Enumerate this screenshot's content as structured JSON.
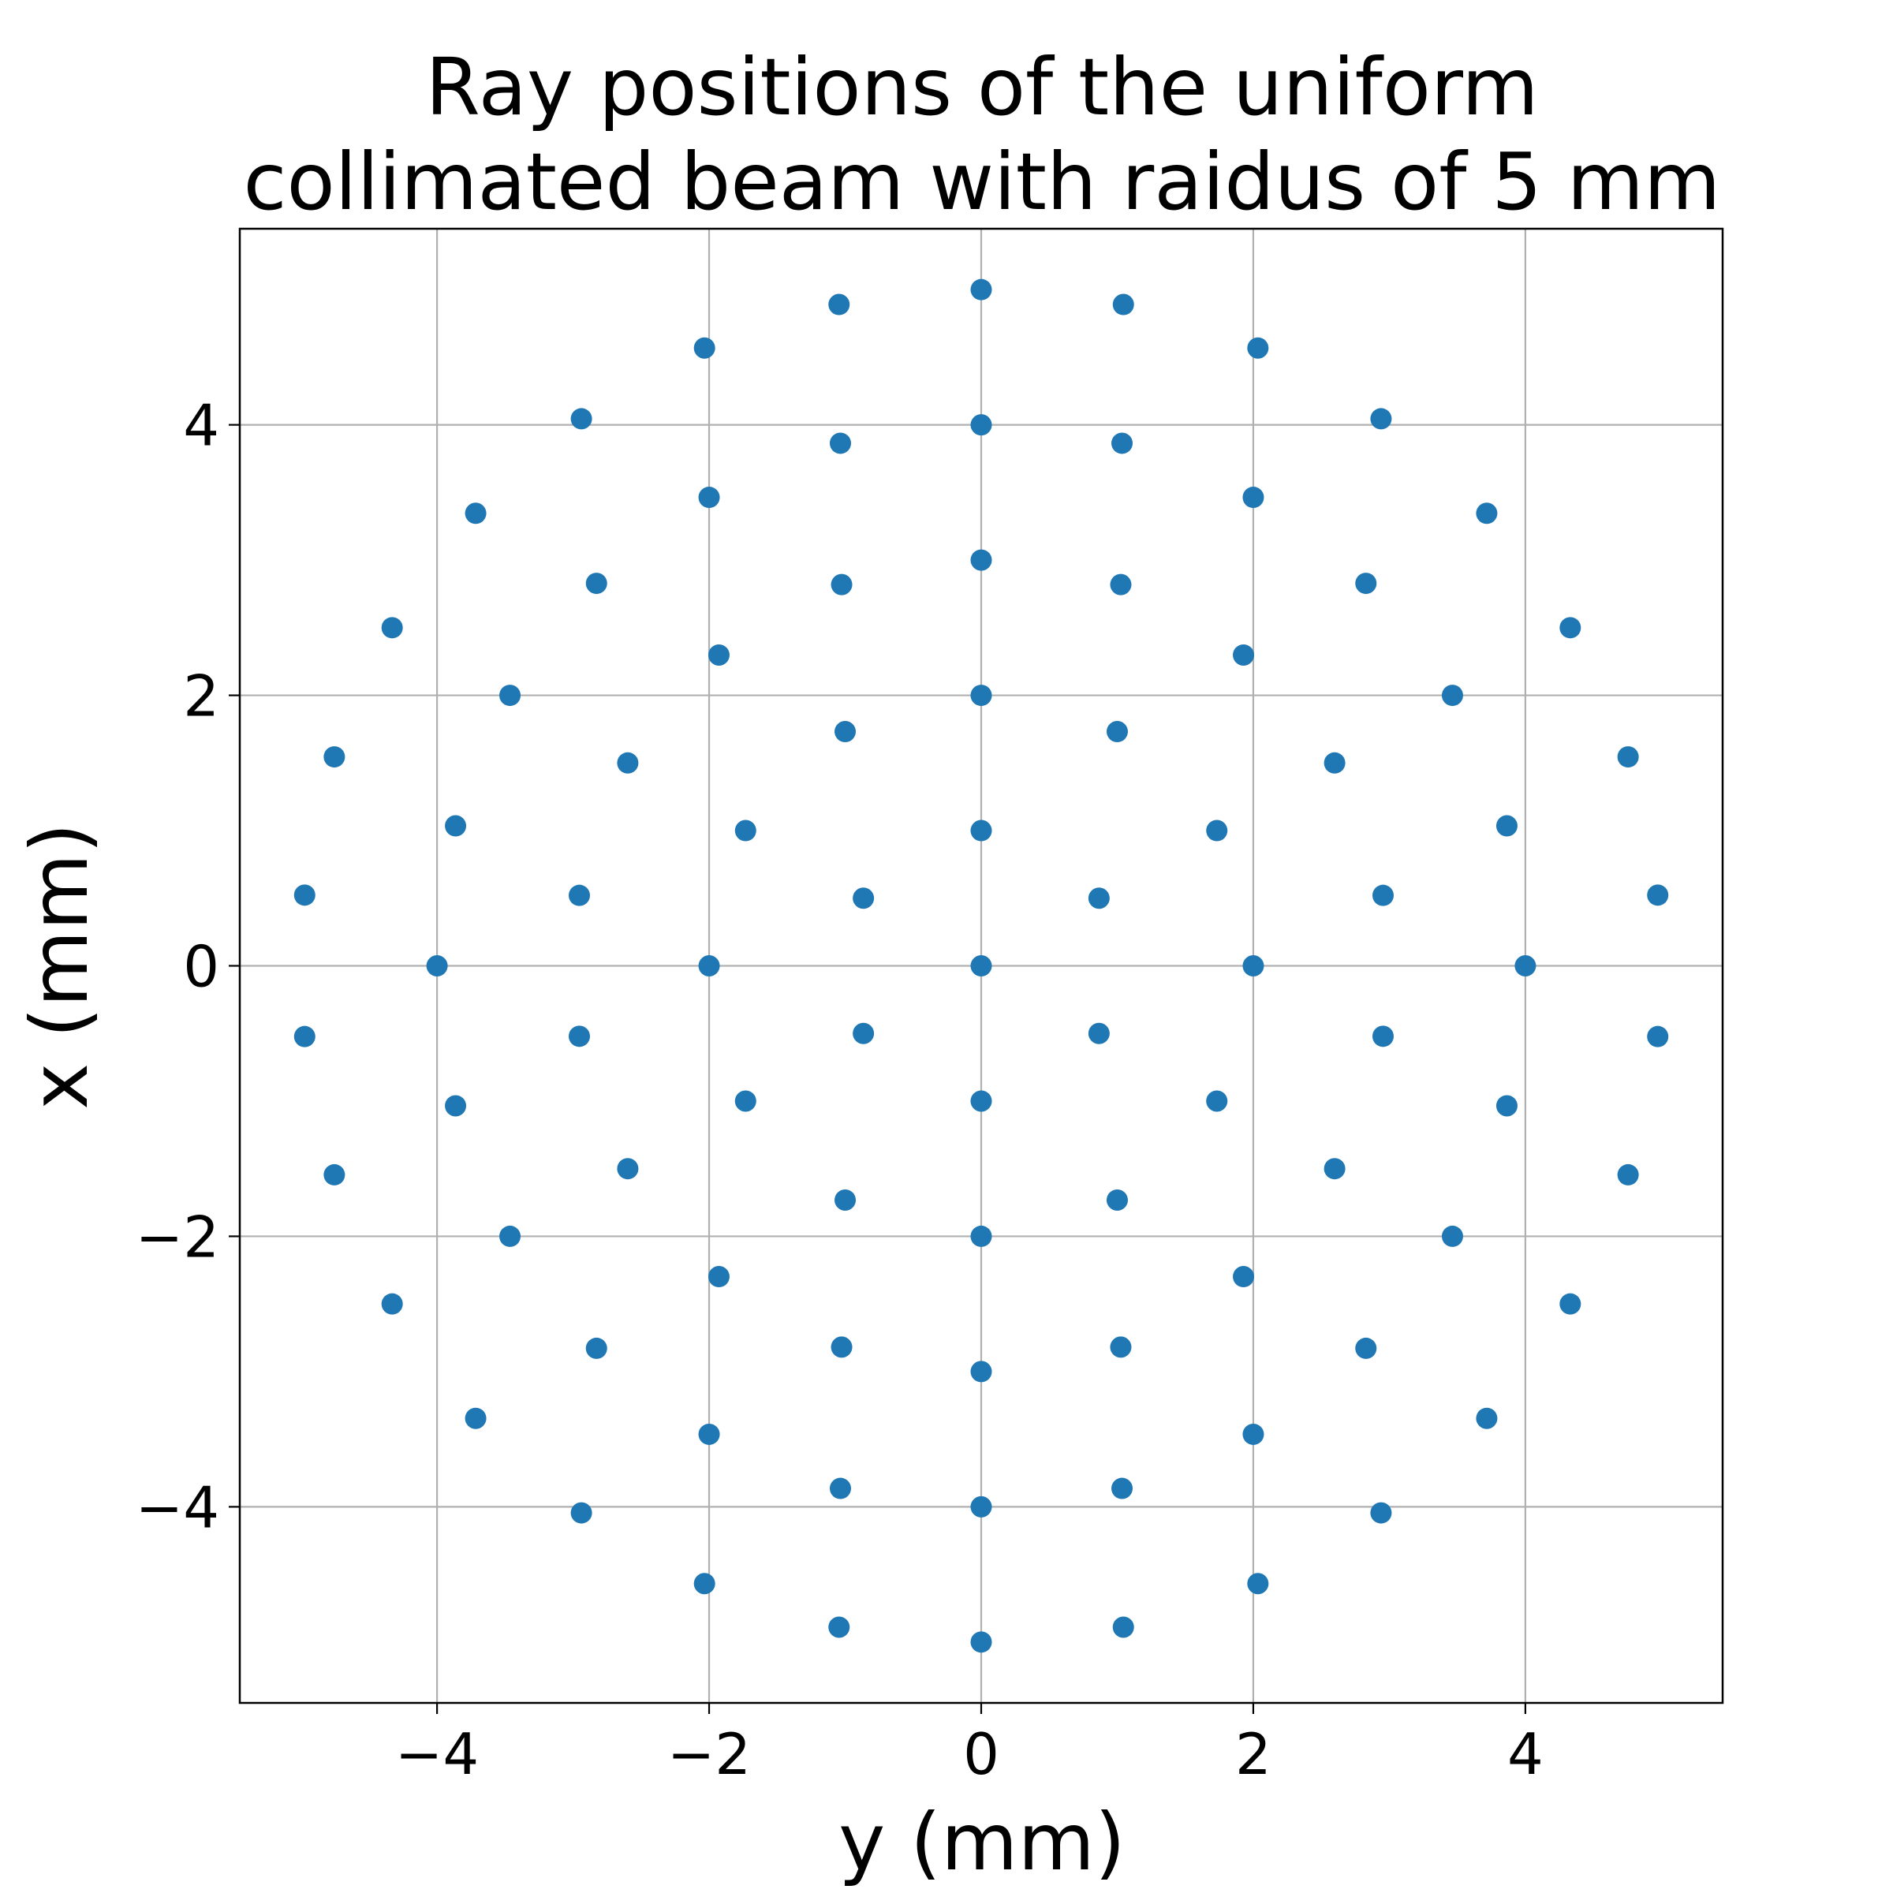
{
  "chart_data": {
    "type": "scatter",
    "title": [
      "Ray positions of the uniform",
      "collimated beam with raidus of 5 mm"
    ],
    "xlabel": "y (mm)",
    "ylabel": "x (mm)",
    "xlim": [
      -5.45,
      5.45
    ],
    "ylim": [
      -5.45,
      5.45
    ],
    "xticks": [
      -4,
      -2,
      0,
      2,
      4
    ],
    "yticks": [
      -4,
      -2,
      0,
      2,
      4
    ],
    "xtick_labels": [
      "−4",
      "−2",
      "0",
      "2",
      "4"
    ],
    "ytick_labels": [
      "−4",
      "−2",
      "0",
      "2",
      "4"
    ],
    "grid": true,
    "marker_color": "#1f77b4",
    "points": [
      [
        0,
        0
      ],
      [
        0,
        1
      ],
      [
        0.866,
        0.5
      ],
      [
        0.866,
        -0.5
      ],
      [
        0,
        -1
      ],
      [
        -0.866,
        -0.5
      ],
      [
        -0.866,
        0.5
      ],
      [
        0,
        2
      ],
      [
        1.0,
        1.732
      ],
      [
        1.732,
        1.0
      ],
      [
        2,
        0
      ],
      [
        1.732,
        -1.0
      ],
      [
        1.0,
        -1.732
      ],
      [
        0,
        -2
      ],
      [
        -1.0,
        -1.732
      ],
      [
        -1.732,
        -1.0
      ],
      [
        -2,
        0
      ],
      [
        -1.732,
        1.0
      ],
      [
        -1.0,
        1.732
      ],
      [
        0,
        3
      ],
      [
        1.026,
        2.819
      ],
      [
        1.928,
        2.298
      ],
      [
        2.598,
        1.5
      ],
      [
        2.954,
        0.521
      ],
      [
        2.954,
        -0.521
      ],
      [
        2.598,
        -1.5
      ],
      [
        1.928,
        -2.298
      ],
      [
        1.026,
        -2.819
      ],
      [
        0,
        -3
      ],
      [
        -1.026,
        -2.819
      ],
      [
        -1.928,
        -2.298
      ],
      [
        -2.598,
        -1.5
      ],
      [
        -2.954,
        -0.521
      ],
      [
        -2.954,
        0.521
      ],
      [
        -2.598,
        1.5
      ],
      [
        -1.928,
        2.298
      ],
      [
        -1.026,
        2.819
      ],
      [
        0,
        4
      ],
      [
        1.035,
        3.864
      ],
      [
        2.0,
        3.464
      ],
      [
        2.828,
        2.828
      ],
      [
        3.464,
        2.0
      ],
      [
        3.864,
        1.035
      ],
      [
        4,
        0
      ],
      [
        3.864,
        -1.035
      ],
      [
        3.464,
        -2.0
      ],
      [
        2.828,
        -2.828
      ],
      [
        2.0,
        -3.464
      ],
      [
        1.035,
        -3.864
      ],
      [
        0,
        -4
      ],
      [
        -1.035,
        -3.864
      ],
      [
        -2.0,
        -3.464
      ],
      [
        -2.828,
        -2.828
      ],
      [
        -3.464,
        -2.0
      ],
      [
        -3.864,
        -1.035
      ],
      [
        -4,
        0
      ],
      [
        -3.864,
        1.035
      ],
      [
        -3.464,
        2.0
      ],
      [
        -2.828,
        2.828
      ],
      [
        -2.0,
        3.464
      ],
      [
        -1.035,
        3.864
      ],
      [
        0,
        5
      ],
      [
        1.045,
        4.89
      ],
      [
        2.034,
        4.568
      ],
      [
        2.939,
        4.045
      ],
      [
        3.716,
        3.346
      ],
      [
        4.33,
        2.5
      ],
      [
        4.755,
        1.545
      ],
      [
        4.973,
        0.523
      ],
      [
        4.973,
        -0.523
      ],
      [
        4.755,
        -1.545
      ],
      [
        4.33,
        -2.5
      ],
      [
        3.716,
        -3.346
      ],
      [
        2.939,
        -4.045
      ],
      [
        2.034,
        -4.568
      ],
      [
        1.045,
        -4.89
      ],
      [
        0,
        -5
      ],
      [
        -1.045,
        -4.89
      ],
      [
        -2.034,
        -4.568
      ],
      [
        -2.939,
        -4.045
      ],
      [
        -3.716,
        -3.346
      ],
      [
        -4.33,
        -2.5
      ],
      [
        -4.755,
        -1.545
      ],
      [
        -4.973,
        -0.523
      ],
      [
        -4.973,
        0.523
      ],
      [
        -4.755,
        1.545
      ],
      [
        -4.33,
        2.5
      ],
      [
        -3.716,
        3.346
      ],
      [
        -2.939,
        4.045
      ],
      [
        -2.034,
        4.568
      ],
      [
        -1.045,
        4.89
      ]
    ]
  }
}
